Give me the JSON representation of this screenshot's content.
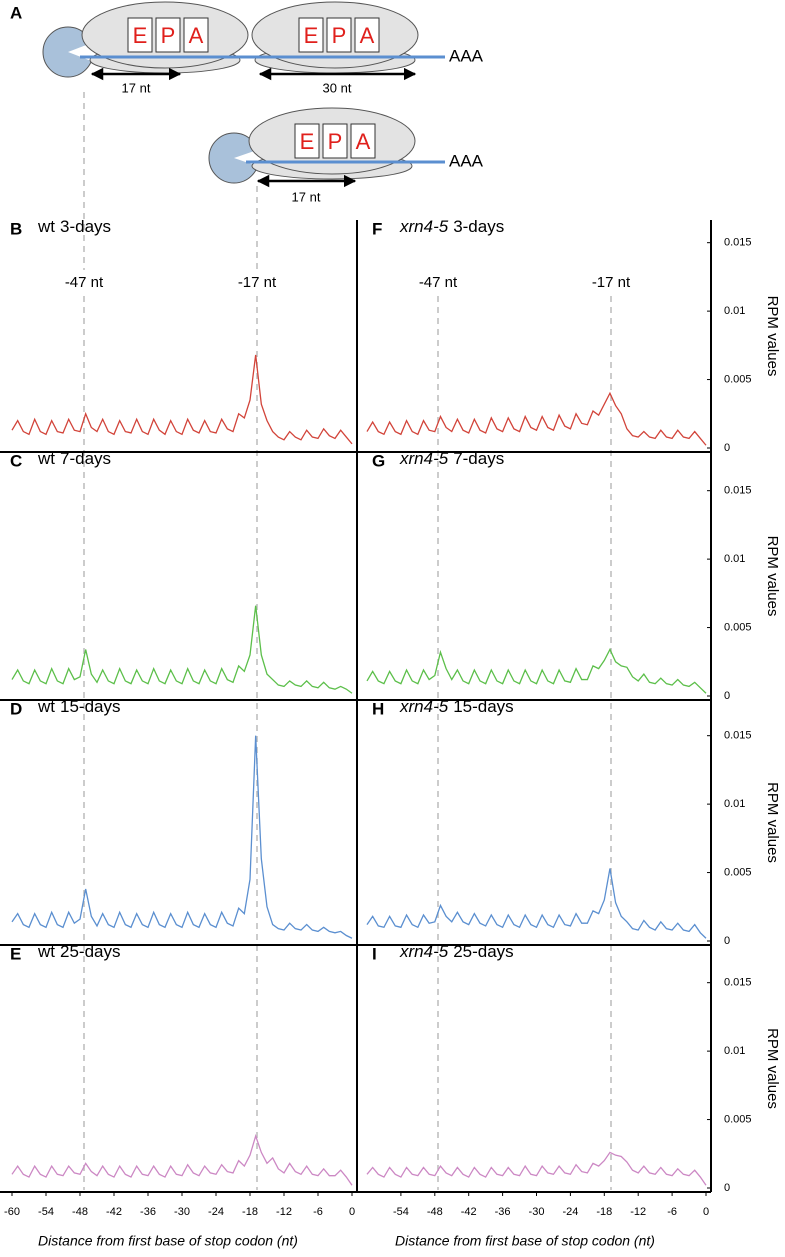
{
  "diagram": {
    "label": "A",
    "rows": [
      {
        "ribosomes": [
          [
            "E",
            "P",
            "A"
          ],
          [
            "E",
            "P",
            "A"
          ]
        ],
        "tail": "AAA",
        "spans": [
          "17 nt",
          "30 nt"
        ]
      },
      {
        "ribosomes": [
          [
            "E",
            "P",
            "A"
          ]
        ],
        "tail": "AAA",
        "spans": [
          "17 nt"
        ]
      }
    ]
  },
  "chart_data": [
    {
      "type": "line",
      "panel": "B",
      "genotype": "wt",
      "genotype_italic": false,
      "title": "3-days",
      "annotations": [
        "-47 nt",
        "-17 nt"
      ],
      "color": "#d2443a",
      "xlim": [
        -60,
        0
      ],
      "ylim": [
        0,
        0.016
      ],
      "x": [
        -60,
        -59,
        -58,
        -57,
        -56,
        -55,
        -54,
        -53,
        -52,
        -51,
        -50,
        -49,
        -48,
        -47,
        -46,
        -45,
        -44,
        -43,
        -42,
        -41,
        -40,
        -39,
        -38,
        -37,
        -36,
        -35,
        -34,
        -33,
        -32,
        -31,
        -30,
        -29,
        -28,
        -27,
        -26,
        -25,
        -24,
        -23,
        -22,
        -21,
        -20,
        -19,
        -18,
        -17,
        -16,
        -15,
        -14,
        -13,
        -12,
        -11,
        -10,
        -9,
        -8,
        -7,
        -6,
        -5,
        -4,
        -3,
        -2,
        -1,
        0
      ],
      "values": [
        0.0013,
        0.002,
        0.0012,
        0.001,
        0.0021,
        0.0012,
        0.001,
        0.002,
        0.0012,
        0.0011,
        0.0021,
        0.0013,
        0.0012,
        0.0025,
        0.0015,
        0.0012,
        0.0021,
        0.0012,
        0.001,
        0.002,
        0.0012,
        0.0011,
        0.0021,
        0.0012,
        0.001,
        0.0021,
        0.0013,
        0.001,
        0.002,
        0.0012,
        0.001,
        0.0021,
        0.0013,
        0.0011,
        0.002,
        0.0012,
        0.0011,
        0.0021,
        0.0014,
        0.0012,
        0.0025,
        0.0022,
        0.0035,
        0.0068,
        0.0032,
        0.002,
        0.0012,
        0.0008,
        0.0006,
        0.0012,
        0.0008,
        0.0006,
        0.0013,
        0.0008,
        0.0007,
        0.0014,
        0.0009,
        0.0007,
        0.0013,
        0.0008,
        0.0003
      ]
    },
    {
      "type": "line",
      "panel": "C",
      "genotype": "wt",
      "genotype_italic": false,
      "title": "7-days",
      "color": "#5cbf4a",
      "xlim": [
        -60,
        0
      ],
      "ylim": [
        0,
        0.016
      ],
      "x": [
        -60,
        -59,
        -58,
        -57,
        -56,
        -55,
        -54,
        -53,
        -52,
        -51,
        -50,
        -49,
        -48,
        -47,
        -46,
        -45,
        -44,
        -43,
        -42,
        -41,
        -40,
        -39,
        -38,
        -37,
        -36,
        -35,
        -34,
        -33,
        -32,
        -31,
        -30,
        -29,
        -28,
        -27,
        -26,
        -25,
        -24,
        -23,
        -22,
        -21,
        -20,
        -19,
        -18,
        -17,
        -16,
        -15,
        -14,
        -13,
        -12,
        -11,
        -10,
        -9,
        -8,
        -7,
        -6,
        -5,
        -4,
        -3,
        -2,
        -1,
        0
      ],
      "values": [
        0.0012,
        0.0019,
        0.0011,
        0.0009,
        0.0019,
        0.0011,
        0.0009,
        0.002,
        0.0011,
        0.0009,
        0.002,
        0.0012,
        0.0014,
        0.0034,
        0.0016,
        0.001,
        0.0019,
        0.0011,
        0.0009,
        0.002,
        0.0011,
        0.0009,
        0.0019,
        0.0011,
        0.0009,
        0.002,
        0.0011,
        0.0009,
        0.0019,
        0.0011,
        0.0009,
        0.002,
        0.0011,
        0.0009,
        0.0019,
        0.0011,
        0.0009,
        0.002,
        0.0012,
        0.001,
        0.0022,
        0.0018,
        0.003,
        0.0066,
        0.003,
        0.0016,
        0.0012,
        0.0008,
        0.0007,
        0.0011,
        0.0008,
        0.0007,
        0.0011,
        0.0007,
        0.0006,
        0.001,
        0.0006,
        0.0005,
        0.0007,
        0.0005,
        0.0002
      ]
    },
    {
      "type": "line",
      "panel": "D",
      "genotype": "wt",
      "genotype_italic": false,
      "title": "15-days",
      "color": "#5b8fd0",
      "xlim": [
        -60,
        0
      ],
      "ylim": [
        0,
        0.016
      ],
      "x": [
        -60,
        -59,
        -58,
        -57,
        -56,
        -55,
        -54,
        -53,
        -52,
        -51,
        -50,
        -49,
        -48,
        -47,
        -46,
        -45,
        -44,
        -43,
        -42,
        -41,
        -40,
        -39,
        -38,
        -37,
        -36,
        -35,
        -34,
        -33,
        -32,
        -31,
        -30,
        -29,
        -28,
        -27,
        -26,
        -25,
        -24,
        -23,
        -22,
        -21,
        -20,
        -19,
        -18,
        -17,
        -16,
        -15,
        -14,
        -13,
        -12,
        -11,
        -10,
        -9,
        -8,
        -7,
        -6,
        -5,
        -4,
        -3,
        -2,
        -1,
        0
      ],
      "values": [
        0.0014,
        0.002,
        0.0012,
        0.001,
        0.002,
        0.0012,
        0.001,
        0.0021,
        0.0012,
        0.001,
        0.0021,
        0.0013,
        0.0016,
        0.0038,
        0.0018,
        0.0011,
        0.002,
        0.0012,
        0.001,
        0.0021,
        0.0012,
        0.001,
        0.002,
        0.0012,
        0.001,
        0.0021,
        0.0012,
        0.001,
        0.002,
        0.0012,
        0.001,
        0.0021,
        0.0012,
        0.001,
        0.002,
        0.0012,
        0.001,
        0.0021,
        0.0013,
        0.0011,
        0.0024,
        0.002,
        0.0045,
        0.015,
        0.006,
        0.0025,
        0.0012,
        0.0009,
        0.0008,
        0.0013,
        0.0009,
        0.0008,
        0.0012,
        0.0008,
        0.0007,
        0.001,
        0.0007,
        0.0006,
        0.0007,
        0.0004,
        0.0002
      ]
    },
    {
      "type": "line",
      "panel": "E",
      "genotype": "wt",
      "genotype_italic": false,
      "title": "25-days",
      "color": "#cc88c4",
      "xlim": [
        -60,
        0
      ],
      "ylim": [
        0,
        0.016
      ],
      "xticks": [
        -60,
        -54,
        -48,
        -42,
        -36,
        -30,
        -24,
        -18,
        -12,
        -6,
        0
      ],
      "xlabel": "Distance from first base of stop codon (nt)",
      "x": [
        -60,
        -59,
        -58,
        -57,
        -56,
        -55,
        -54,
        -53,
        -52,
        -51,
        -50,
        -49,
        -48,
        -47,
        -46,
        -45,
        -44,
        -43,
        -42,
        -41,
        -40,
        -39,
        -38,
        -37,
        -36,
        -35,
        -34,
        -33,
        -32,
        -31,
        -30,
        -29,
        -28,
        -27,
        -26,
        -25,
        -24,
        -23,
        -22,
        -21,
        -20,
        -19,
        -18,
        -17,
        -16,
        -15,
        -14,
        -13,
        -12,
        -11,
        -10,
        -9,
        -8,
        -7,
        -6,
        -5,
        -4,
        -3,
        -2,
        -1,
        0
      ],
      "values": [
        0.001,
        0.0016,
        0.001,
        0.0008,
        0.0016,
        0.001,
        0.0008,
        0.0016,
        0.001,
        0.0009,
        0.0016,
        0.0011,
        0.001,
        0.0018,
        0.0012,
        0.0009,
        0.0016,
        0.001,
        0.0008,
        0.0016,
        0.001,
        0.0008,
        0.0016,
        0.001,
        0.0009,
        0.0016,
        0.001,
        0.0008,
        0.0016,
        0.001,
        0.0009,
        0.0017,
        0.0011,
        0.0009,
        0.0016,
        0.0011,
        0.001,
        0.0017,
        0.0012,
        0.0011,
        0.002,
        0.0016,
        0.0024,
        0.0038,
        0.0026,
        0.0018,
        0.0022,
        0.0014,
        0.0011,
        0.0018,
        0.0012,
        0.001,
        0.0016,
        0.001,
        0.0009,
        0.0014,
        0.0009,
        0.0009,
        0.0013,
        0.0008,
        0.0002
      ]
    },
    {
      "type": "line",
      "panel": "F",
      "genotype": "xrn4-5",
      "genotype_italic": true,
      "title": "3-days",
      "annotations": [
        "-47 nt",
        "-17 nt"
      ],
      "color": "#d2443a",
      "xlim": [
        -60,
        0
      ],
      "ylim": [
        0,
        0.016
      ],
      "yticks": [
        0,
        0.005,
        0.01,
        0.015
      ],
      "ylabel": "RPM values",
      "x": [
        -60,
        -59,
        -58,
        -57,
        -56,
        -55,
        -54,
        -53,
        -52,
        -51,
        -50,
        -49,
        -48,
        -47,
        -46,
        -45,
        -44,
        -43,
        -42,
        -41,
        -40,
        -39,
        -38,
        -37,
        -36,
        -35,
        -34,
        -33,
        -32,
        -31,
        -30,
        -29,
        -28,
        -27,
        -26,
        -25,
        -24,
        -23,
        -22,
        -21,
        -20,
        -19,
        -18,
        -17,
        -16,
        -15,
        -14,
        -13,
        -12,
        -11,
        -10,
        -9,
        -8,
        -7,
        -6,
        -5,
        -4,
        -3,
        -2,
        -1,
        0
      ],
      "values": [
        0.0012,
        0.0019,
        0.0012,
        0.001,
        0.0019,
        0.0012,
        0.001,
        0.002,
        0.0012,
        0.001,
        0.002,
        0.0013,
        0.0012,
        0.0023,
        0.0015,
        0.0012,
        0.0021,
        0.0013,
        0.0011,
        0.0021,
        0.0013,
        0.0011,
        0.0022,
        0.0014,
        0.0012,
        0.0022,
        0.0014,
        0.0012,
        0.0023,
        0.0015,
        0.0013,
        0.0023,
        0.0015,
        0.0013,
        0.0024,
        0.0016,
        0.0014,
        0.0025,
        0.0018,
        0.0017,
        0.0027,
        0.0024,
        0.0032,
        0.004,
        0.0031,
        0.0025,
        0.0014,
        0.0009,
        0.0008,
        0.0012,
        0.0008,
        0.0007,
        0.0013,
        0.0008,
        0.0007,
        0.0013,
        0.0008,
        0.0007,
        0.0012,
        0.0007,
        0.0002
      ]
    },
    {
      "type": "line",
      "panel": "G",
      "genotype": "xrn4-5",
      "genotype_italic": true,
      "title": "7-days",
      "color": "#5cbf4a",
      "xlim": [
        -60,
        0
      ],
      "ylim": [
        0,
        0.016
      ],
      "yticks": [
        0,
        0.005,
        0.01,
        0.015
      ],
      "ylabel": "RPM values",
      "x": [
        -60,
        -59,
        -58,
        -57,
        -56,
        -55,
        -54,
        -53,
        -52,
        -51,
        -50,
        -49,
        -48,
        -47,
        -46,
        -45,
        -44,
        -43,
        -42,
        -41,
        -40,
        -39,
        -38,
        -37,
        -36,
        -35,
        -34,
        -33,
        -32,
        -31,
        -30,
        -29,
        -28,
        -27,
        -26,
        -25,
        -24,
        -23,
        -22,
        -21,
        -20,
        -19,
        -18,
        -17,
        -16,
        -15,
        -14,
        -13,
        -12,
        -11,
        -10,
        -9,
        -8,
        -7,
        -6,
        -5,
        -4,
        -3,
        -2,
        -1,
        0
      ],
      "values": [
        0.0011,
        0.0018,
        0.0011,
        0.0009,
        0.0018,
        0.0011,
        0.0009,
        0.0019,
        0.0011,
        0.0009,
        0.0019,
        0.0012,
        0.0015,
        0.0032,
        0.002,
        0.0012,
        0.0019,
        0.0011,
        0.0009,
        0.0019,
        0.0011,
        0.0009,
        0.0019,
        0.0011,
        0.0009,
        0.0019,
        0.0011,
        0.0009,
        0.0019,
        0.0011,
        0.0009,
        0.0019,
        0.0011,
        0.0009,
        0.0019,
        0.0011,
        0.001,
        0.002,
        0.0012,
        0.0012,
        0.0022,
        0.002,
        0.0026,
        0.0034,
        0.0025,
        0.0022,
        0.0021,
        0.0014,
        0.0011,
        0.0016,
        0.001,
        0.0009,
        0.0013,
        0.0009,
        0.0008,
        0.0012,
        0.0008,
        0.0007,
        0.001,
        0.0006,
        0.0002
      ]
    },
    {
      "type": "line",
      "panel": "H",
      "genotype": "xrn4-5",
      "genotype_italic": true,
      "title": "15-days",
      "color": "#5b8fd0",
      "xlim": [
        -60,
        0
      ],
      "ylim": [
        0,
        0.016
      ],
      "yticks": [
        0,
        0.005,
        0.01,
        0.015
      ],
      "ylabel": "RPM values",
      "x": [
        -60,
        -59,
        -58,
        -57,
        -56,
        -55,
        -54,
        -53,
        -52,
        -51,
        -50,
        -49,
        -48,
        -47,
        -46,
        -45,
        -44,
        -43,
        -42,
        -41,
        -40,
        -39,
        -38,
        -37,
        -36,
        -35,
        -34,
        -33,
        -32,
        -31,
        -30,
        -29,
        -28,
        -27,
        -26,
        -25,
        -24,
        -23,
        -22,
        -21,
        -20,
        -19,
        -18,
        -17,
        -16,
        -15,
        -14,
        -13,
        -12,
        -11,
        -10,
        -9,
        -8,
        -7,
        -6,
        -5,
        -4,
        -3,
        -2,
        -1,
        0
      ],
      "values": [
        0.0012,
        0.0018,
        0.0011,
        0.001,
        0.0018,
        0.0011,
        0.001,
        0.0019,
        0.0012,
        0.001,
        0.0019,
        0.0013,
        0.0014,
        0.0026,
        0.0018,
        0.0014,
        0.0021,
        0.0014,
        0.0012,
        0.002,
        0.0013,
        0.0011,
        0.0019,
        0.0012,
        0.001,
        0.0019,
        0.0012,
        0.001,
        0.0019,
        0.0012,
        0.001,
        0.0019,
        0.0012,
        0.001,
        0.0019,
        0.0012,
        0.0011,
        0.002,
        0.0013,
        0.0013,
        0.0022,
        0.002,
        0.003,
        0.0053,
        0.0028,
        0.0018,
        0.0014,
        0.0009,
        0.0008,
        0.0015,
        0.001,
        0.0008,
        0.0014,
        0.0009,
        0.0008,
        0.0013,
        0.0008,
        0.0007,
        0.0012,
        0.0006,
        0.0002
      ]
    },
    {
      "type": "line",
      "panel": "I",
      "genotype": "xrn4-5",
      "genotype_italic": true,
      "title": "25-days",
      "color": "#cc88c4",
      "xlim": [
        -60,
        0
      ],
      "ylim": [
        0,
        0.016
      ],
      "yticks": [
        0,
        0.005,
        0.01,
        0.015
      ],
      "ylabel": "RPM values",
      "xticks": [
        -54,
        -48,
        -42,
        -36,
        -30,
        -24,
        -18,
        -12,
        -6,
        0
      ],
      "xlabel": "Distance from first base of stop codon (nt)",
      "x": [
        -60,
        -59,
        -58,
        -57,
        -56,
        -55,
        -54,
        -53,
        -52,
        -51,
        -50,
        -49,
        -48,
        -47,
        -46,
        -45,
        -44,
        -43,
        -42,
        -41,
        -40,
        -39,
        -38,
        -37,
        -36,
        -35,
        -34,
        -33,
        -32,
        -31,
        -30,
        -29,
        -28,
        -27,
        -26,
        -25,
        -24,
        -23,
        -22,
        -21,
        -20,
        -19,
        -18,
        -17,
        -16,
        -15,
        -14,
        -13,
        -12,
        -11,
        -10,
        -9,
        -8,
        -7,
        -6,
        -5,
        -4,
        -3,
        -2,
        -1,
        0
      ],
      "values": [
        0.001,
        0.0015,
        0.001,
        0.0008,
        0.0015,
        0.001,
        0.0008,
        0.0015,
        0.001,
        0.0009,
        0.0015,
        0.001,
        0.0009,
        0.0016,
        0.0011,
        0.0009,
        0.0015,
        0.001,
        0.0008,
        0.0015,
        0.001,
        0.0008,
        0.0015,
        0.001,
        0.0009,
        0.0015,
        0.001,
        0.0009,
        0.0016,
        0.001,
        0.0009,
        0.0016,
        0.0011,
        0.001,
        0.0016,
        0.0011,
        0.001,
        0.0017,
        0.0012,
        0.0011,
        0.0018,
        0.0016,
        0.002,
        0.0026,
        0.0024,
        0.0023,
        0.0019,
        0.0013,
        0.0011,
        0.0016,
        0.0011,
        0.001,
        0.0015,
        0.001,
        0.0009,
        0.0014,
        0.001,
        0.0009,
        0.0013,
        0.0008,
        0.0002
      ]
    }
  ]
}
